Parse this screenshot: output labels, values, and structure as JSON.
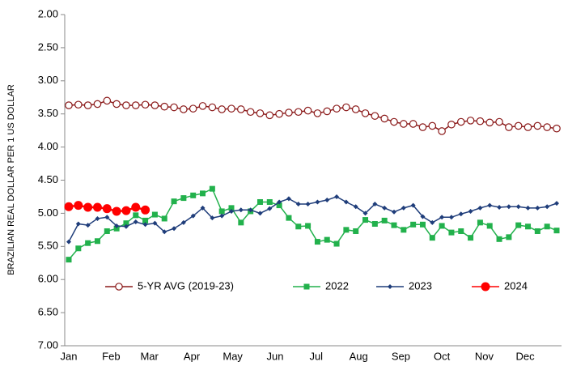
{
  "chart_data": {
    "type": "line",
    "y_label": "BRAZILIAN REAL DOLLAR PER 1 US DOLLAR",
    "ylim": [
      2,
      7
    ],
    "y_inverted": true,
    "yticks": [
      {
        "value": 2,
        "label": "2.00"
      },
      {
        "value": 2.5,
        "label": "2.50"
      },
      {
        "value": 3,
        "label": "3.00"
      },
      {
        "value": 3.5,
        "label": "3.50"
      },
      {
        "value": 4,
        "label": "4.00"
      },
      {
        "value": 4.5,
        "label": "4.50"
      },
      {
        "value": 5,
        "label": "5.00"
      },
      {
        "value": 5.5,
        "label": "5.50"
      },
      {
        "value": 6,
        "label": "6.00"
      },
      {
        "value": 6.5,
        "label": "6.50"
      },
      {
        "value": 7,
        "label": "7.00"
      }
    ],
    "xlim": [
      0,
      51
    ],
    "xticks": [
      {
        "value": 0,
        "label": "Jan"
      },
      {
        "value": 4.43,
        "label": "Feb"
      },
      {
        "value": 8.43,
        "label": "Mar"
      },
      {
        "value": 12.86,
        "label": "Apr"
      },
      {
        "value": 17.14,
        "label": "May"
      },
      {
        "value": 21.57,
        "label": "Jun"
      },
      {
        "value": 25.86,
        "label": "Jul"
      },
      {
        "value": 30.29,
        "label": "Aug"
      },
      {
        "value": 34.71,
        "label": "Sep"
      },
      {
        "value": 39,
        "label": "Oct"
      },
      {
        "value": 43.43,
        "label": "Nov"
      },
      {
        "value": 47.71,
        "label": "Dec"
      }
    ],
    "grid": false,
    "legend": "bottom",
    "series": [
      {
        "name": "5-YR AVG (2019-23)",
        "color": "#8b1a1a",
        "marker": "open-circle",
        "values": [
          3.37,
          3.36,
          3.37,
          3.35,
          3.3,
          3.35,
          3.37,
          3.37,
          3.36,
          3.37,
          3.39,
          3.4,
          3.43,
          3.42,
          3.38,
          3.4,
          3.43,
          3.42,
          3.43,
          3.47,
          3.49,
          3.52,
          3.5,
          3.48,
          3.47,
          3.45,
          3.49,
          3.46,
          3.42,
          3.4,
          3.43,
          3.49,
          3.53,
          3.57,
          3.62,
          3.65,
          3.65,
          3.7,
          3.68,
          3.76,
          3.66,
          3.62,
          3.6,
          3.61,
          3.63,
          3.62,
          3.7,
          3.68,
          3.7,
          3.68,
          3.7,
          3.72
        ]
      },
      {
        "name": "2022",
        "color": "#22b14c",
        "marker": "square",
        "values": [
          5.7,
          5.53,
          5.45,
          5.42,
          5.27,
          5.23,
          5.15,
          5.03,
          5.11,
          5.02,
          5.08,
          4.82,
          4.77,
          4.73,
          4.7,
          4.63,
          4.97,
          4.92,
          5.14,
          4.97,
          4.83,
          4.83,
          4.88,
          5.07,
          5.2,
          5.19,
          5.43,
          5.4,
          5.46,
          5.25,
          5.27,
          5.1,
          5.16,
          5.11,
          5.18,
          5.25,
          5.17,
          5.17,
          5.37,
          5.19,
          5.29,
          5.27,
          5.37,
          5.14,
          5.19,
          5.39,
          5.36,
          5.18,
          5.2,
          5.27,
          5.2,
          5.26
        ]
      },
      {
        "name": "2023",
        "color": "#1f3d7a",
        "marker": "diamond",
        "values": [
          5.43,
          5.16,
          5.18,
          5.08,
          5.06,
          5.19,
          5.2,
          5.13,
          5.17,
          5.15,
          5.28,
          5.23,
          5.14,
          5.04,
          4.92,
          5.07,
          5.04,
          4.97,
          4.95,
          4.95,
          5.0,
          4.93,
          4.83,
          4.78,
          4.86,
          4.86,
          4.83,
          4.8,
          4.75,
          4.83,
          4.9,
          5.0,
          4.86,
          4.92,
          4.98,
          4.92,
          4.88,
          5.05,
          5.14,
          5.06,
          5.06,
          5.01,
          4.97,
          4.92,
          4.88,
          4.91,
          4.9,
          4.9,
          4.92,
          4.92,
          4.9,
          4.85
        ]
      },
      {
        "name": "2024",
        "color": "#ff0000",
        "marker": "circle",
        "values": [
          4.9,
          4.88,
          4.91,
          4.91,
          4.93,
          4.97,
          4.96,
          4.91,
          4.95
        ]
      }
    ]
  }
}
